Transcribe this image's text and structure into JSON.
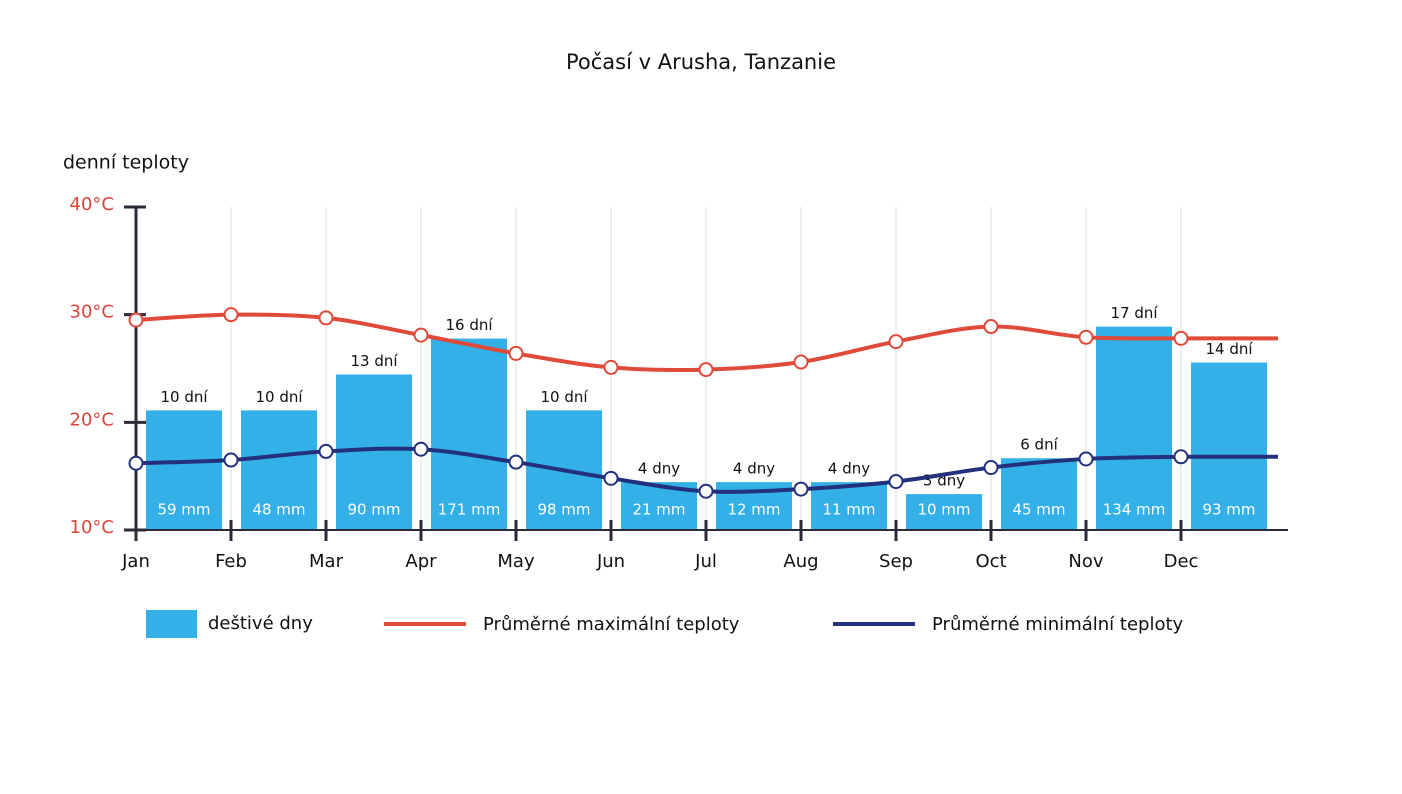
{
  "chart_data": {
    "type": "bar-line",
    "title": "Počasí v Arusha, Tanzanie",
    "y_label": "denní teploty",
    "categories": [
      "Jan",
      "Feb",
      "Mar",
      "Apr",
      "May",
      "Jun",
      "Jul",
      "Aug",
      "Sep",
      "Oct",
      "Nov",
      "Dec"
    ],
    "ylim": [
      10,
      40
    ],
    "yticks": [
      {
        "value": 10,
        "label": "10°C"
      },
      {
        "value": 20,
        "label": "20°C"
      },
      {
        "value": 30,
        "label": "30°C"
      },
      {
        "value": 40,
        "label": "40°C"
      }
    ],
    "y2lim": [
      0,
      27
    ],
    "grid": true,
    "bars": {
      "name": "deštivé dny",
      "color": "#33b0e8",
      "values": [
        10,
        10,
        13,
        16,
        10,
        4,
        4,
        4,
        3,
        6,
        17,
        14
      ],
      "value_labels": [
        "10 dní",
        "10 dní",
        "13 dní",
        "16 dní",
        "10 dní",
        "4 dny",
        "4 dny",
        "4 dny",
        "3 dny",
        "6 dní",
        "17 dní",
        "14 dní"
      ],
      "rain_mm": [
        59,
        48,
        90,
        171,
        98,
        21,
        12,
        11,
        10,
        45,
        134,
        93
      ],
      "rain_mm_labels": [
        "59 mm",
        "48 mm",
        "90 mm",
        "171 mm",
        "98 mm",
        "21 mm",
        "12 mm",
        "11 mm",
        "10 mm",
        "45 mm",
        "134 mm",
        "93 mm"
      ]
    },
    "series": [
      {
        "name": "Průměrné maximální teploty",
        "color": "#e04a3a",
        "values": [
          29.5,
          30.0,
          29.7,
          28.1,
          26.4,
          25.1,
          24.9,
          25.6,
          27.5,
          28.9,
          27.9,
          27.8
        ]
      },
      {
        "name": "Průměrné minimální teploty",
        "color": "#23317d",
        "values": [
          16.2,
          16.5,
          17.3,
          17.5,
          16.3,
          14.8,
          13.6,
          13.8,
          14.5,
          15.8,
          16.6,
          16.8
        ]
      }
    ]
  }
}
